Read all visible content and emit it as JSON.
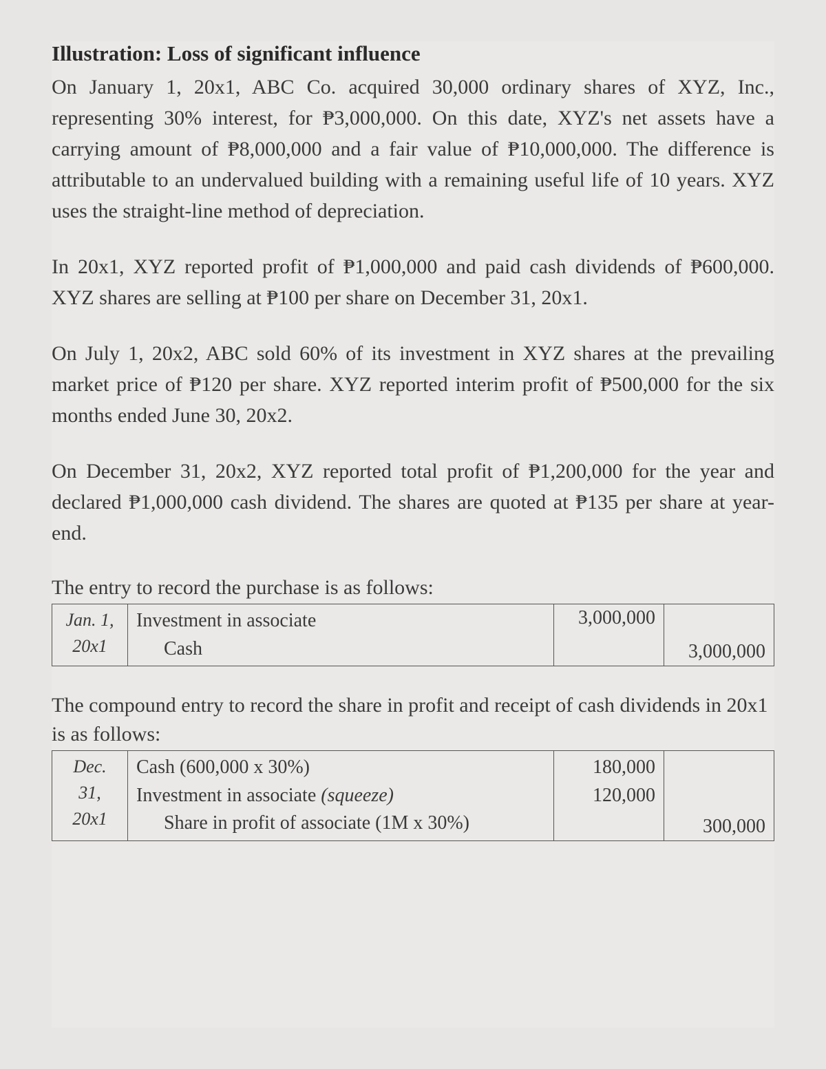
{
  "colors": {
    "page_background": "#e8e6e4",
    "text_color": "#3a3a3a",
    "title_color": "#2a2a2a",
    "border_color": "#555555"
  },
  "typography": {
    "title_fontsize": 31,
    "body_fontsize": 30,
    "table_fontsize": 28,
    "date_fontsize": 26,
    "font_family": "Palatino"
  },
  "title": "Illustration: Loss of significant influence",
  "para1": "On January 1, 20x1, ABC Co. acquired 30,000 ordinary shares of XYZ, Inc., representing 30% interest, for ₱3,000,000. On this date, XYZ's net assets have a carrying amount of ₱8,000,000 and a fair value of ₱10,000,000. The difference is attributable to an undervalued building with a remaining useful life of 10 years. XYZ uses the straight-line method of depreciation.",
  "para2": "In 20x1, XYZ reported profit of ₱1,000,000 and paid cash dividends of ₱600,000. XYZ shares are selling at ₱100 per share on December 31, 20x1.",
  "para3": "On July 1, 20x2, ABC sold 60% of its investment in XYZ shares at the prevailing market price of ₱120 per share. XYZ reported interim profit of ₱500,000 for the six months ended June 30, 20x2.",
  "para4": "On December 31, 20x2, XYZ reported total profit of ₱1,200,000 for the year and declared ₱1,000,000 cash dividend. The shares are quoted at ₱135 per share at year-end.",
  "entry1_intro": "The entry to record the purchase is as follows:",
  "entry1": {
    "date_line1": "Jan. 1,",
    "date_line2": "20x1",
    "desc1": "Investment in associate",
    "desc2": "Cash",
    "debit": "3,000,000",
    "credit": "3,000,000"
  },
  "entry2_intro": "The compound entry to record the share in profit and receipt of cash dividends in 20x1 is as follows:",
  "entry2": {
    "date_line1": "Dec.",
    "date_line2": "31,",
    "date_line3": "20x1",
    "desc1_prefix": "Cash ",
    "desc1_calc": "(600,000 x 30%)",
    "desc2_prefix": "Investment in associate ",
    "desc2_note": "(squeeze)",
    "desc3_prefix": "Share in profit of associate ",
    "desc3_calc": "(1M x 30%)",
    "debit1": "180,000",
    "debit2": "120,000",
    "credit": "300,000"
  }
}
